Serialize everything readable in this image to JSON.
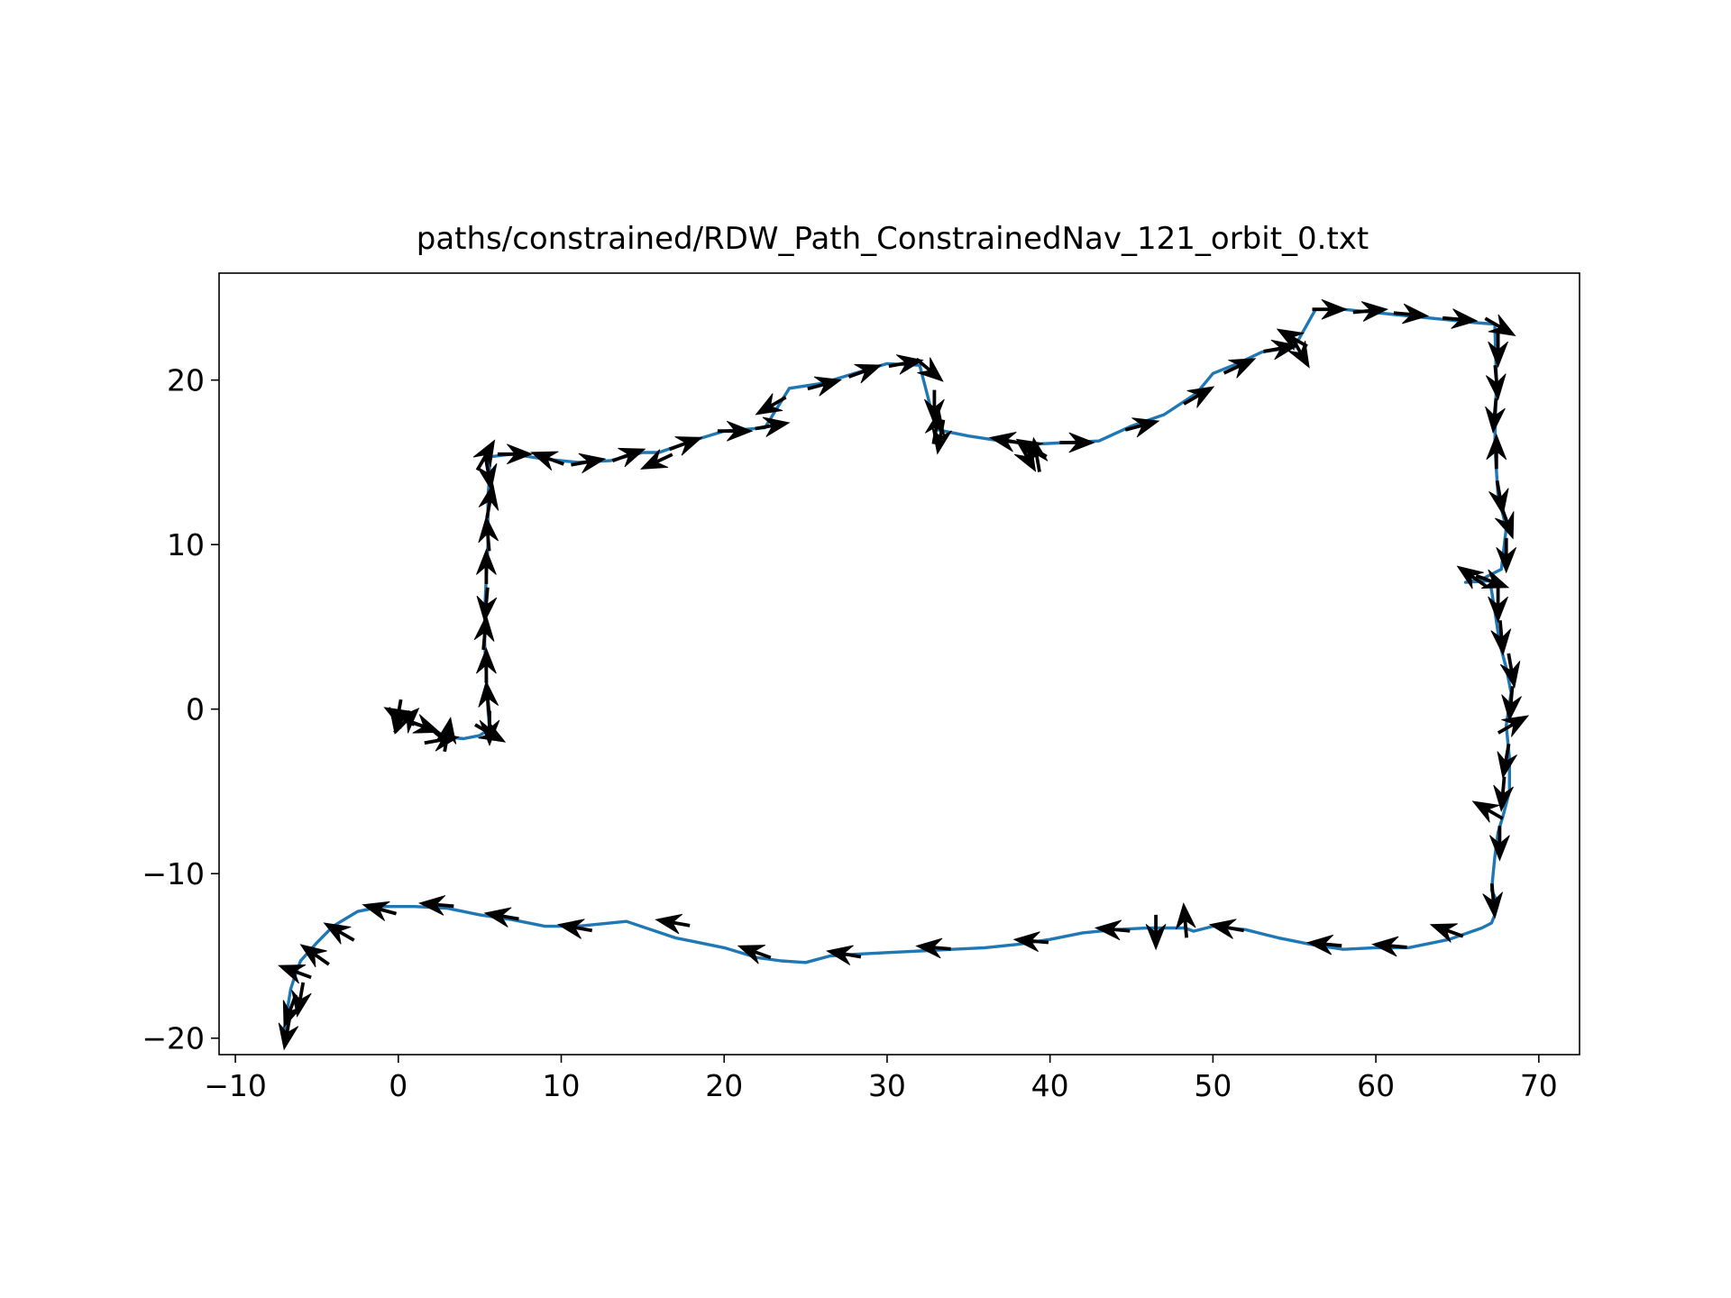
{
  "chart_data": {
    "type": "line",
    "title": "paths/constrained/RDW_Path_ConstrainedNav_121_orbit_0.txt",
    "xlabel": "",
    "ylabel": "",
    "xlim": [
      -11,
      72.5
    ],
    "ylim": [
      -21,
      26.5
    ],
    "xticks": [
      -10,
      0,
      10,
      20,
      30,
      40,
      50,
      60,
      70
    ],
    "yticks": [
      -20,
      -10,
      0,
      10,
      20
    ],
    "xtick_labels": [
      "−10",
      "0",
      "10",
      "20",
      "30",
      "40",
      "50",
      "60",
      "70"
    ],
    "ytick_labels": [
      "−20",
      "−10",
      "0",
      "10",
      "20"
    ],
    "grid": false,
    "legend": "none",
    "series": [
      {
        "color": "#1f77b4",
        "x": [
          0,
          1,
          2,
          3,
          4,
          5,
          5.6,
          5.5,
          5.4,
          5.3,
          5.3,
          5.4,
          5.5,
          5.5,
          5.5,
          5.6,
          5.6,
          5.5,
          5.3,
          7,
          9,
          11,
          13,
          15,
          16,
          18,
          20,
          22.5,
          23,
          24,
          26,
          28,
          30,
          32,
          32.5,
          33,
          35,
          37,
          39,
          41,
          43,
          45,
          47,
          49,
          50,
          51.5,
          53,
          55,
          56.3,
          58,
          60,
          62,
          64,
          66,
          67.3,
          67.4,
          67.3,
          67.5,
          68,
          67.7,
          66.5,
          65.5,
          67,
          67.3,
          67.6,
          68,
          68.3,
          68,
          68.2,
          68.2,
          67.8,
          67.5,
          67.3,
          67.1,
          67.5,
          67.3,
          67.1,
          66.5,
          64.5,
          62,
          60,
          58,
          56,
          54,
          52,
          50,
          48.8,
          48.3,
          47.7,
          46,
          44,
          42,
          40,
          38,
          36,
          34,
          32,
          30,
          28,
          26.5,
          25,
          23.5,
          22,
          20,
          17,
          14,
          11,
          9,
          7,
          5,
          3,
          1,
          -1,
          -2.5,
          -4,
          -5,
          -6,
          -6.3,
          -6.6,
          -6.8,
          -7
        ],
        "y": [
          -0.6,
          -0.9,
          -1.2,
          -1.7,
          -1.8,
          -1.6,
          -1.2,
          0,
          2,
          4,
          6,
          8,
          10,
          11.5,
          13,
          14,
          14.8,
          15.1,
          15.3,
          15.5,
          15.2,
          15.0,
          15.1,
          15.6,
          15.6,
          16.3,
          16.9,
          17.1,
          17.9,
          19.5,
          19.8,
          20.4,
          21.0,
          20.9,
          19,
          17,
          16.6,
          16.3,
          16.1,
          16.2,
          16.3,
          17.2,
          17.9,
          19.2,
          20.4,
          21.0,
          21.7,
          22.0,
          24.3,
          24.3,
          24.1,
          23.9,
          23.7,
          23.5,
          23.4,
          20,
          16,
          13,
          11,
          8.5,
          7.9,
          7.7,
          7.8,
          6,
          4,
          2.5,
          1,
          -1,
          -3,
          -5,
          -6.5,
          -7.5,
          -9,
          -11,
          -11.8,
          -12.5,
          -13,
          -13.3,
          -14,
          -14.5,
          -14.5,
          -14.6,
          -14.3,
          -13.9,
          -13.4,
          -13.2,
          -13.5,
          -13.3,
          -13.3,
          -13.3,
          -13.4,
          -13.6,
          -14,
          -14.3,
          -14.5,
          -14.6,
          -14.7,
          -14.8,
          -14.9,
          -15.0,
          -15.4,
          -15.3,
          -15.1,
          -14.5,
          -13.9,
          -12.9,
          -13.2,
          -13.2,
          -12.8,
          -12.5,
          -12.1,
          -12.0,
          -12.0,
          -12.3,
          -13.2,
          -14.2,
          -15.3,
          -16.1,
          -17,
          -18.2,
          -19.5
        ]
      }
    ],
    "arrows": [
      {
        "x": 0.2,
        "y": -0.5,
        "angle": 150
      },
      {
        "x": 0.0,
        "y": -0.3,
        "angle": -100
      },
      {
        "x": 0.4,
        "y": -0.8,
        "angle": 45
      },
      {
        "x": 1.4,
        "y": -1.0,
        "angle": -20
      },
      {
        "x": 3.0,
        "y": -1.7,
        "angle": 80
      },
      {
        "x": 2.5,
        "y": -1.9,
        "angle": 10
      },
      {
        "x": 5.5,
        "y": -1.4,
        "angle": -30
      },
      {
        "x": 5.6,
        "y": -1.0,
        "angle": -90
      },
      {
        "x": 5.5,
        "y": 0.5,
        "angle": 95
      },
      {
        "x": 5.4,
        "y": 2.5,
        "angle": 90
      },
      {
        "x": 5.3,
        "y": 4.5,
        "angle": 85
      },
      {
        "x": 5.4,
        "y": 6.5,
        "angle": -95
      },
      {
        "x": 5.4,
        "y": 8.5,
        "angle": 90
      },
      {
        "x": 5.5,
        "y": 10.5,
        "angle": 95
      },
      {
        "x": 5.6,
        "y": 12.5,
        "angle": 80
      },
      {
        "x": 5.5,
        "y": 14.5,
        "angle": -80
      },
      {
        "x": 5.3,
        "y": 15.3,
        "angle": 60
      },
      {
        "x": 7.0,
        "y": 15.5,
        "angle": 0
      },
      {
        "x": 9.3,
        "y": 15.2,
        "angle": 160
      },
      {
        "x": 11.5,
        "y": 15.0,
        "angle": 10
      },
      {
        "x": 14.0,
        "y": 15.4,
        "angle": 20
      },
      {
        "x": 16.0,
        "y": 15.1,
        "angle": -155
      },
      {
        "x": 17.5,
        "y": 16.1,
        "angle": 20
      },
      {
        "x": 20.5,
        "y": 16.9,
        "angle": 0
      },
      {
        "x": 22.8,
        "y": 17.2,
        "angle": 10
      },
      {
        "x": 23.0,
        "y": 18.5,
        "angle": -150
      },
      {
        "x": 26.0,
        "y": 19.7,
        "angle": 15
      },
      {
        "x": 28.5,
        "y": 20.5,
        "angle": 20
      },
      {
        "x": 31.0,
        "y": 21.0,
        "angle": 10
      },
      {
        "x": 32.5,
        "y": 20.7,
        "angle": -40
      },
      {
        "x": 32.9,
        "y": 18.5,
        "angle": -90
      },
      {
        "x": 33.0,
        "y": 17.0,
        "angle": 80
      },
      {
        "x": 33.3,
        "y": 16.7,
        "angle": -100
      },
      {
        "x": 37.5,
        "y": 16.3,
        "angle": 170
      },
      {
        "x": 39.0,
        "y": 15.8,
        "angle": 150
      },
      {
        "x": 38.5,
        "y": 15.5,
        "angle": -60
      },
      {
        "x": 39.2,
        "y": 15.3,
        "angle": 100
      },
      {
        "x": 41.5,
        "y": 16.2,
        "angle": 0
      },
      {
        "x": 45.5,
        "y": 17.2,
        "angle": 15
      },
      {
        "x": 49.0,
        "y": 19.0,
        "angle": 30
      },
      {
        "x": 51.5,
        "y": 20.8,
        "angle": 25
      },
      {
        "x": 54.0,
        "y": 21.9,
        "angle": 10
      },
      {
        "x": 55.0,
        "y": 22.5,
        "angle": 150
      },
      {
        "x": 55.3,
        "y": 21.8,
        "angle": -60
      },
      {
        "x": 57.0,
        "y": 24.3,
        "angle": 0
      },
      {
        "x": 59.5,
        "y": 24.2,
        "angle": 5
      },
      {
        "x": 62.0,
        "y": 24.0,
        "angle": -5
      },
      {
        "x": 65.0,
        "y": 23.7,
        "angle": -5
      },
      {
        "x": 67.5,
        "y": 23.3,
        "angle": -30
      },
      {
        "x": 67.5,
        "y": 22.0,
        "angle": -90
      },
      {
        "x": 67.4,
        "y": 20.0,
        "angle": -85
      },
      {
        "x": 67.3,
        "y": 18.0,
        "angle": -95
      },
      {
        "x": 67.4,
        "y": 15.5,
        "angle": 90
      },
      {
        "x": 67.6,
        "y": 13.0,
        "angle": -80
      },
      {
        "x": 68.0,
        "y": 11.5,
        "angle": -70
      },
      {
        "x": 68.0,
        "y": 9.5,
        "angle": -90
      },
      {
        "x": 66.0,
        "y": 8.0,
        "angle": 145
      },
      {
        "x": 67.0,
        "y": 7.8,
        "angle": -20
      },
      {
        "x": 67.5,
        "y": 6.5,
        "angle": -90
      },
      {
        "x": 67.7,
        "y": 4.5,
        "angle": -85
      },
      {
        "x": 68.3,
        "y": 2.5,
        "angle": -80
      },
      {
        "x": 68.3,
        "y": 0.5,
        "angle": -95
      },
      {
        "x": 68.3,
        "y": -1.0,
        "angle": 30
      },
      {
        "x": 68.0,
        "y": -3.0,
        "angle": -100
      },
      {
        "x": 67.8,
        "y": -5.0,
        "angle": -95
      },
      {
        "x": 67.0,
        "y": -6.2,
        "angle": 150
      },
      {
        "x": 67.6,
        "y": -8.0,
        "angle": -90
      },
      {
        "x": 67.2,
        "y": -11.5,
        "angle": -85
      },
      {
        "x": 64.5,
        "y": -13.5,
        "angle": 160
      },
      {
        "x": 61.0,
        "y": -14.4,
        "angle": 175
      },
      {
        "x": 57.0,
        "y": -14.3,
        "angle": 175
      },
      {
        "x": 51.0,
        "y": -13.3,
        "angle": 170
      },
      {
        "x": 48.3,
        "y": -13.0,
        "angle": 95
      },
      {
        "x": 46.5,
        "y": -13.4,
        "angle": -90
      },
      {
        "x": 44.0,
        "y": -13.4,
        "angle": 175
      },
      {
        "x": 39.0,
        "y": -14.1,
        "angle": 175
      },
      {
        "x": 33.0,
        "y": -14.5,
        "angle": 175
      },
      {
        "x": 27.5,
        "y": -14.9,
        "angle": 170
      },
      {
        "x": 22.0,
        "y": -14.8,
        "angle": 160
      },
      {
        "x": 17.0,
        "y": -13.0,
        "angle": 170
      },
      {
        "x": 11.0,
        "y": -13.3,
        "angle": 170
      },
      {
        "x": 6.5,
        "y": -12.6,
        "angle": 170
      },
      {
        "x": 2.5,
        "y": -11.9,
        "angle": 175
      },
      {
        "x": -1.0,
        "y": -12.2,
        "angle": 165
      },
      {
        "x": -3.5,
        "y": -13.6,
        "angle": 150
      },
      {
        "x": -5.0,
        "y": -15.0,
        "angle": 145
      },
      {
        "x": -6.2,
        "y": -16.0,
        "angle": 160
      },
      {
        "x": -6.0,
        "y": -17.5,
        "angle": -100
      },
      {
        "x": -6.6,
        "y": -18.2,
        "angle": -110
      },
      {
        "x": -6.8,
        "y": -19.5,
        "angle": -100
      }
    ]
  }
}
